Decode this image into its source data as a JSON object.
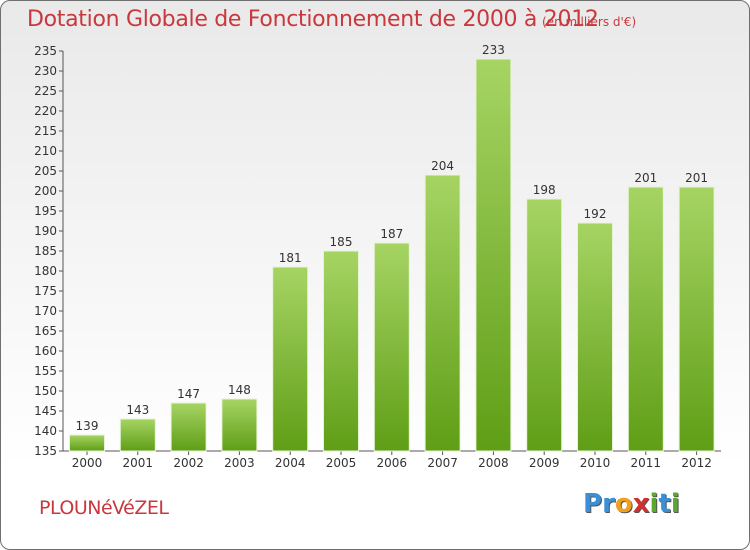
{
  "title": "Dotation Globale de Fonctionnement de 2000 à 2012",
  "subtitle": "(en milliers d'€)",
  "commune": "PLOUNéVéZEL",
  "logo": {
    "letters": [
      "P",
      "r",
      "o",
      "x",
      "i",
      "t",
      "i"
    ],
    "colors": [
      "#3a8fd6",
      "#3a8fd6",
      "#f0a020",
      "#d03030",
      "#5aa832",
      "#3a8fd6",
      "#5aa832"
    ]
  },
  "colors": {
    "bar_light": "#a6d464",
    "bar_dark": "#5f9e16",
    "text": "#c8383d"
  },
  "chart_data": {
    "type": "bar",
    "categories": [
      "2000",
      "2001",
      "2002",
      "2003",
      "2004",
      "2005",
      "2006",
      "2007",
      "2008",
      "2009",
      "2010",
      "2011",
      "2012"
    ],
    "values": [
      139,
      143,
      147,
      148,
      181,
      185,
      187,
      204,
      233,
      198,
      192,
      201,
      201
    ],
    "ylim": [
      135,
      235
    ],
    "yticks": [
      135,
      140,
      145,
      150,
      155,
      160,
      165,
      170,
      175,
      180,
      185,
      190,
      195,
      200,
      205,
      210,
      215,
      220,
      225,
      230,
      235
    ],
    "grid": false,
    "data_labels": true
  }
}
